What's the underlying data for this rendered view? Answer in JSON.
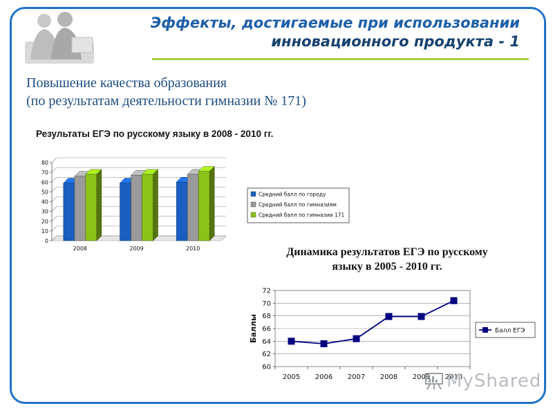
{
  "header": {
    "title_line1": "Эффекты, достигаемые при использовании",
    "title_line2": "инновационного продукта - 1"
  },
  "subtitle": {
    "line1": "Повышение качества образования",
    "line2": "(по результатам деятельности гимназии № 171)"
  },
  "watermark": {
    "text": "MyShared"
  },
  "colors": {
    "frame": "#1e72c8",
    "accent_rule": "#a8cf3a",
    "series_city": "#1a5fc0",
    "series_gymnasiums": "#9a9a9a",
    "series_171": "#8cc21a",
    "line_marker": "#000080"
  },
  "chart_data": [
    {
      "type": "bar",
      "title": "Результаты ЕГЭ по русскому языку в 2008 - 2010 гг.",
      "categories": [
        "2008",
        "2009",
        "2010"
      ],
      "series": [
        {
          "name": "Средний балл по городу",
          "values": [
            59,
            59,
            60
          ]
        },
        {
          "name": "Средний балл по гимназиям",
          "values": [
            66,
            67,
            68
          ]
        },
        {
          "name": "Средний балл по гимназии 171",
          "values": [
            68,
            68,
            71
          ]
        }
      ],
      "ylim": [
        0,
        80
      ],
      "yticks": [
        0,
        10,
        20,
        30,
        40,
        50,
        60,
        70,
        80
      ],
      "grid": true,
      "legend": "right"
    },
    {
      "type": "line",
      "title_line1": "Динамика результатов ЕГЭ по русскому",
      "title_line2": "языку в 2005 - 2010 гг.",
      "ylabel": "Баллы",
      "x": [
        "2005",
        "2006",
        "2007",
        "2008",
        "2009",
        "2010"
      ],
      "series": [
        {
          "name": "Балл ЕГЭ",
          "values": [
            64.0,
            63.6,
            64.4,
            67.9,
            67.9,
            70.4
          ]
        }
      ],
      "ylim": [
        60,
        72
      ],
      "yticks": [
        60,
        62,
        64,
        66,
        68,
        70,
        72
      ],
      "grid": true,
      "legend": "right"
    }
  ]
}
